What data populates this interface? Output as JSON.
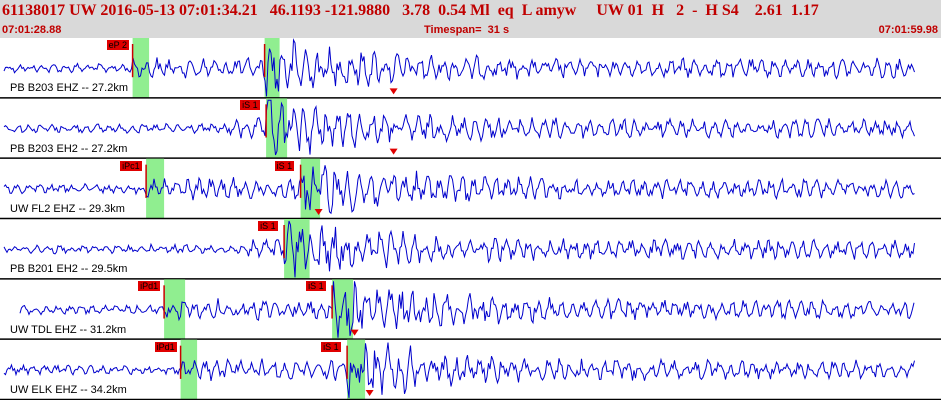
{
  "header": {
    "title": "61138017 UW 2016-05-13 07:01:34.21   46.1193 -121.9880   3.78  0.54 Ml  eq  L amyw     UW 01  H   2  -  H S4    2.61  1.17",
    "start_time": "07:01:28.88",
    "timespan": "Timespan=  31 s",
    "end_time": "07:01:59.98"
  },
  "colors": {
    "header_bg": "#d9d9d9",
    "header_text": "#c00000",
    "trace": "#0000cc",
    "pick_label_bg": "#e00000",
    "pick_window": "#90ee90",
    "divider": "#000000",
    "arrival_marker": "#e00000"
  },
  "traces": [
    {
      "label": "PB B203 EHZ -- 27.2km",
      "picks": [
        {
          "label": "eP 2",
          "time": "07:01:33.30",
          "window_end": "07:01:33.85"
        },
        {
          "label": "",
          "time": "07:01:37.70",
          "window_end": "07:01:38.20"
        }
      ],
      "marker_time": "07:01:42.00"
    },
    {
      "label": "PB B203 EH2 -- 27.2km",
      "picks": [
        {
          "label": "iS 1",
          "time": "07:01:37.75",
          "window_end": "07:01:38.45"
        }
      ],
      "marker_time": "07:01:42.00"
    },
    {
      "label": "UW FL2 EHZ -- 29.3km",
      "picks": [
        {
          "label": "iPc1",
          "time": "07:01:33.75",
          "window_end": "07:01:34.35"
        },
        {
          "label": "iS 1",
          "time": "07:01:38.90",
          "window_end": "07:01:39.55"
        }
      ],
      "marker_time": "07:01:39.50"
    },
    {
      "label": "PB B201 EH2 -- 29.5km",
      "picks": [
        {
          "label": "iS 1",
          "time": "07:01:38.35",
          "window_end": "07:01:39.20"
        }
      ],
      "marker_time": null
    },
    {
      "label": "UW TDL EHZ -- 31.2km",
      "picks": [
        {
          "label": "iPd1",
          "time": "07:01:34.35",
          "window_end": "07:01:35.05"
        },
        {
          "label": "iS 1",
          "time": "07:01:39.95",
          "window_end": "07:01:40.65"
        }
      ],
      "marker_time": "07:01:40.70"
    },
    {
      "label": "UW ELK EHZ -- 34.2km",
      "picks": [
        {
          "label": "iPd1",
          "time": "07:01:34.90",
          "window_end": "07:01:35.45"
        },
        {
          "label": "iS 1",
          "time": "07:01:40.45",
          "window_end": "07:01:41.05"
        }
      ],
      "marker_time": "07:01:41.20"
    }
  ]
}
